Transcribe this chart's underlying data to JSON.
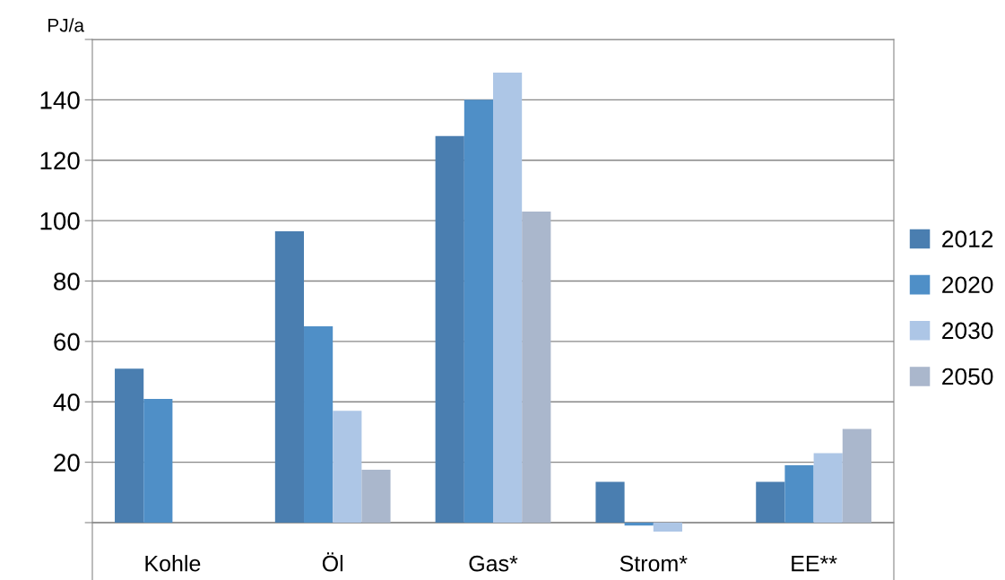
{
  "chart_data": {
    "type": "bar",
    "ylabel": "PJ/a",
    "categories": [
      "Kohle",
      "Öl",
      "Gas*",
      "Strom*",
      "EE**"
    ],
    "series": [
      {
        "name": "2012",
        "color": "#4a7eb0",
        "values": [
          51,
          96.5,
          128,
          13.5,
          13.5
        ]
      },
      {
        "name": "2020",
        "color": "#4f8fc7",
        "values": [
          41,
          65,
          140,
          -1,
          19
        ]
      },
      {
        "name": "2030",
        "color": "#adc6e6",
        "values": [
          0,
          37,
          149,
          -3,
          23
        ]
      },
      {
        "name": "2050",
        "color": "#aab7cc",
        "values": [
          0,
          17.5,
          103,
          0,
          31
        ]
      }
    ],
    "ylim": [
      -19,
      160
    ],
    "yticks": [
      {
        "value": 0,
        "label": null
      },
      20,
      40,
      60,
      80,
      100,
      120,
      140,
      {
        "value": 160,
        "label": null
      }
    ],
    "grid": "y",
    "legend": "right"
  }
}
